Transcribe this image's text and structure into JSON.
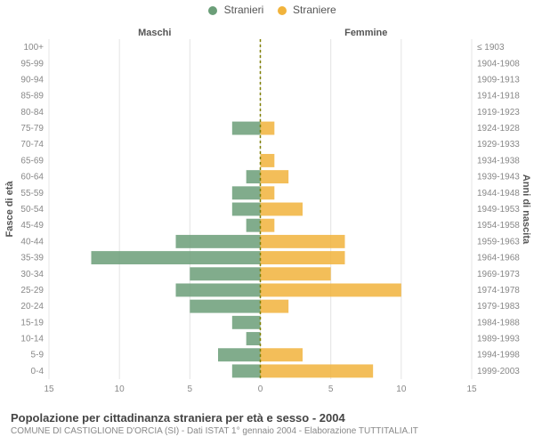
{
  "chart": {
    "type": "population-pyramid",
    "legend": [
      {
        "label": "Stranieri",
        "color": "#6b9e78"
      },
      {
        "label": "Straniere",
        "color": "#f1b33c"
      }
    ],
    "col_headers": {
      "left": "Maschi",
      "right": "Femmine"
    },
    "left_axis_title": "Fasce di età",
    "right_axis_title": "Anni di nascita",
    "age_labels": [
      "0-4",
      "5-9",
      "10-14",
      "15-19",
      "20-24",
      "25-29",
      "30-34",
      "35-39",
      "40-44",
      "45-49",
      "50-54",
      "55-59",
      "60-64",
      "65-69",
      "70-74",
      "75-79",
      "80-84",
      "85-89",
      "90-94",
      "95-99",
      "100+"
    ],
    "birth_labels": [
      "1999-2003",
      "1994-1998",
      "1989-1993",
      "1984-1988",
      "1979-1983",
      "1974-1978",
      "1969-1973",
      "1964-1968",
      "1959-1963",
      "1954-1958",
      "1949-1953",
      "1944-1948",
      "1939-1943",
      "1934-1938",
      "1929-1933",
      "1924-1928",
      "1919-1923",
      "1914-1918",
      "1909-1913",
      "1904-1908",
      "≤ 1903"
    ],
    "male_values": [
      2,
      3,
      1,
      2,
      5,
      6,
      5,
      12,
      6,
      1,
      2,
      2,
      1,
      0,
      0,
      2,
      0,
      0,
      0,
      0,
      0
    ],
    "female_values": [
      8,
      3,
      0,
      0,
      2,
      10,
      5,
      6,
      6,
      1,
      3,
      1,
      2,
      1,
      0,
      1,
      0,
      0,
      0,
      0,
      0
    ],
    "x_axis": {
      "min": 0,
      "max": 15,
      "tick_step": 5
    },
    "bar_fill_opacity": 0.85,
    "background_color": "#ffffff",
    "chart_bg": "#ffffff",
    "grid_color": "#e4e4e4",
    "bar_gap_ratio": 0.18,
    "male_color": "#6b9e78",
    "female_color": "#f1b33c",
    "center_line_color": "#808000",
    "font": {
      "label_size": 10,
      "axis_title_size": 11
    }
  },
  "footer": {
    "title": "Popolazione per cittadinanza straniera per età e sesso - 2004",
    "subtitle": "COMUNE DI CASTIGLIONE D'ORCIA (SI) - Dati ISTAT 1° gennaio 2004 - Elaborazione TUTTITALIA.IT"
  }
}
